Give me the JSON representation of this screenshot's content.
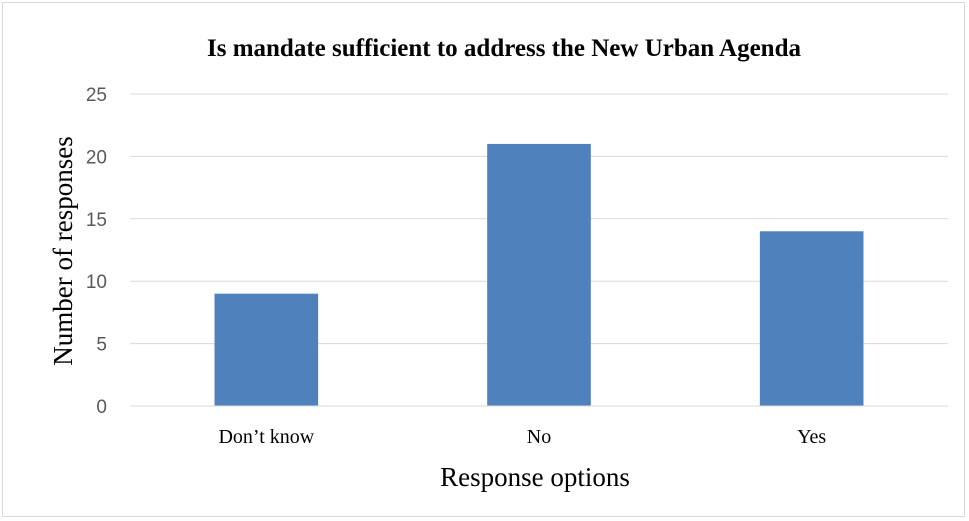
{
  "chart_data": {
    "type": "bar",
    "title": "Is mandate sufficient to address the New Urban Agenda",
    "xlabel": "Response options",
    "ylabel": "Number of responses",
    "categories": [
      "Don’t know",
      "No",
      "Yes"
    ],
    "values": [
      9,
      21,
      14
    ],
    "ylim": [
      0,
      25
    ],
    "yticks": [
      0,
      5,
      10,
      15,
      20,
      25
    ],
    "grid": true,
    "legend": "none",
    "bar_color": "#4f81bd",
    "gridline_color": "#d9d9d9"
  }
}
